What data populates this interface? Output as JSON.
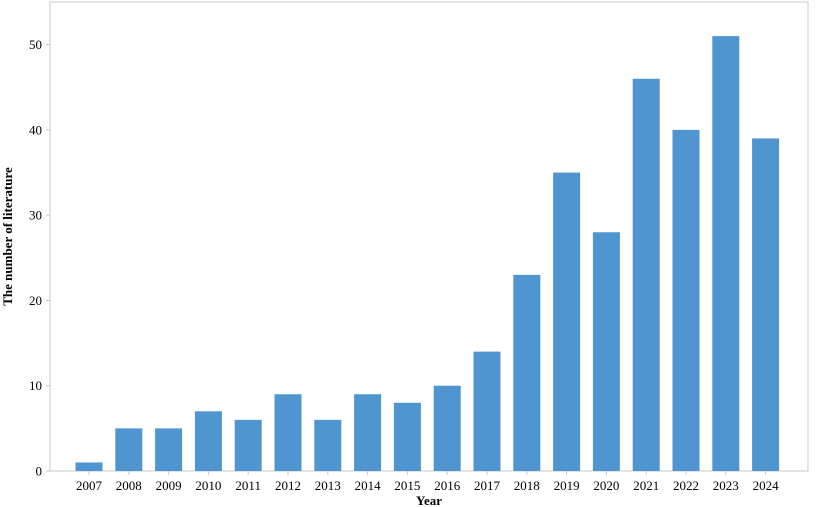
{
  "chart_data": {
    "type": "bar",
    "title": "",
    "xlabel": "Year",
    "ylabel": "The number of literature",
    "categories": [
      "2007",
      "2008",
      "2009",
      "2010",
      "2011",
      "2012",
      "2013",
      "2014",
      "2015",
      "2016",
      "2017",
      "2018",
      "2019",
      "2020",
      "2021",
      "2022",
      "2023",
      "2024"
    ],
    "values": [
      1,
      5,
      5,
      7,
      6,
      9,
      6,
      9,
      8,
      10,
      14,
      23,
      35,
      28,
      46,
      40,
      51,
      39
    ],
    "ylim": [
      0,
      55
    ],
    "yticks": [
      0,
      10,
      20,
      30,
      40,
      50
    ],
    "grid": false,
    "legend": "none",
    "bar_color": "#4f96d1",
    "frame_color": "#c8c8c8"
  }
}
